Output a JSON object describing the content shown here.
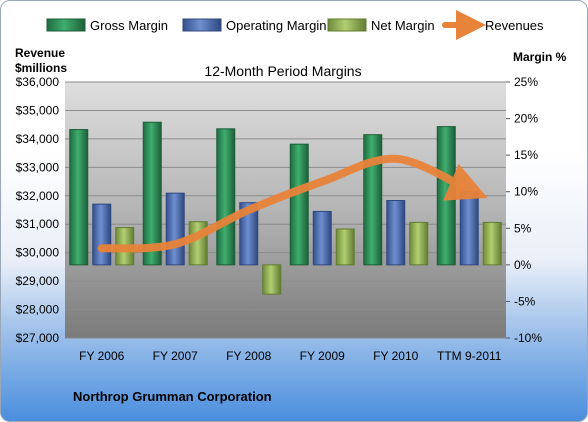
{
  "chart_data": {
    "type": "bar",
    "title": "12-Month Period Margins",
    "caption": "Northrop Grumman Corporation",
    "left_axis": {
      "label_line1": "Revenue",
      "label_line2": "$millions",
      "range": [
        27000,
        36000
      ],
      "ticks": [
        "$27,000",
        "$28,000",
        "$29,000",
        "$30,000",
        "$31,000",
        "$32,000",
        "$33,000",
        "$34,000",
        "$35,000",
        "$36,000"
      ]
    },
    "right_axis": {
      "label": "Margin %",
      "range": [
        -10,
        25
      ],
      "ticks": [
        "-10%",
        "-5%",
        "0%",
        "5%",
        "10%",
        "15%",
        "20%",
        "25%"
      ]
    },
    "categories": [
      "FY 2006",
      "FY 2007",
      "FY 2008",
      "FY 2009",
      "FY 2010",
      "TTM 9-2011"
    ],
    "series": [
      {
        "name": "Gross Margin",
        "type": "bar",
        "axis": "right",
        "color": "#2e8b57",
        "values": [
          18.5,
          19.5,
          18.6,
          16.5,
          17.8,
          18.9
        ]
      },
      {
        "name": "Operating Margin",
        "type": "bar",
        "axis": "right",
        "color": "#4f6fb5",
        "values": [
          8.3,
          9.8,
          8.5,
          7.3,
          8.8,
          10.0
        ]
      },
      {
        "name": "Net Margin",
        "type": "bar",
        "axis": "right",
        "color": "#8fae4f",
        "values": [
          5.1,
          5.9,
          -4.0,
          4.9,
          5.8,
          5.8
        ]
      },
      {
        "name": "Revenues",
        "type": "line",
        "axis": "left",
        "color": "#e8833a",
        "values": [
          30150,
          30300,
          31500,
          32500,
          33300,
          32200
        ]
      }
    ],
    "grid": true,
    "legend": "top"
  }
}
